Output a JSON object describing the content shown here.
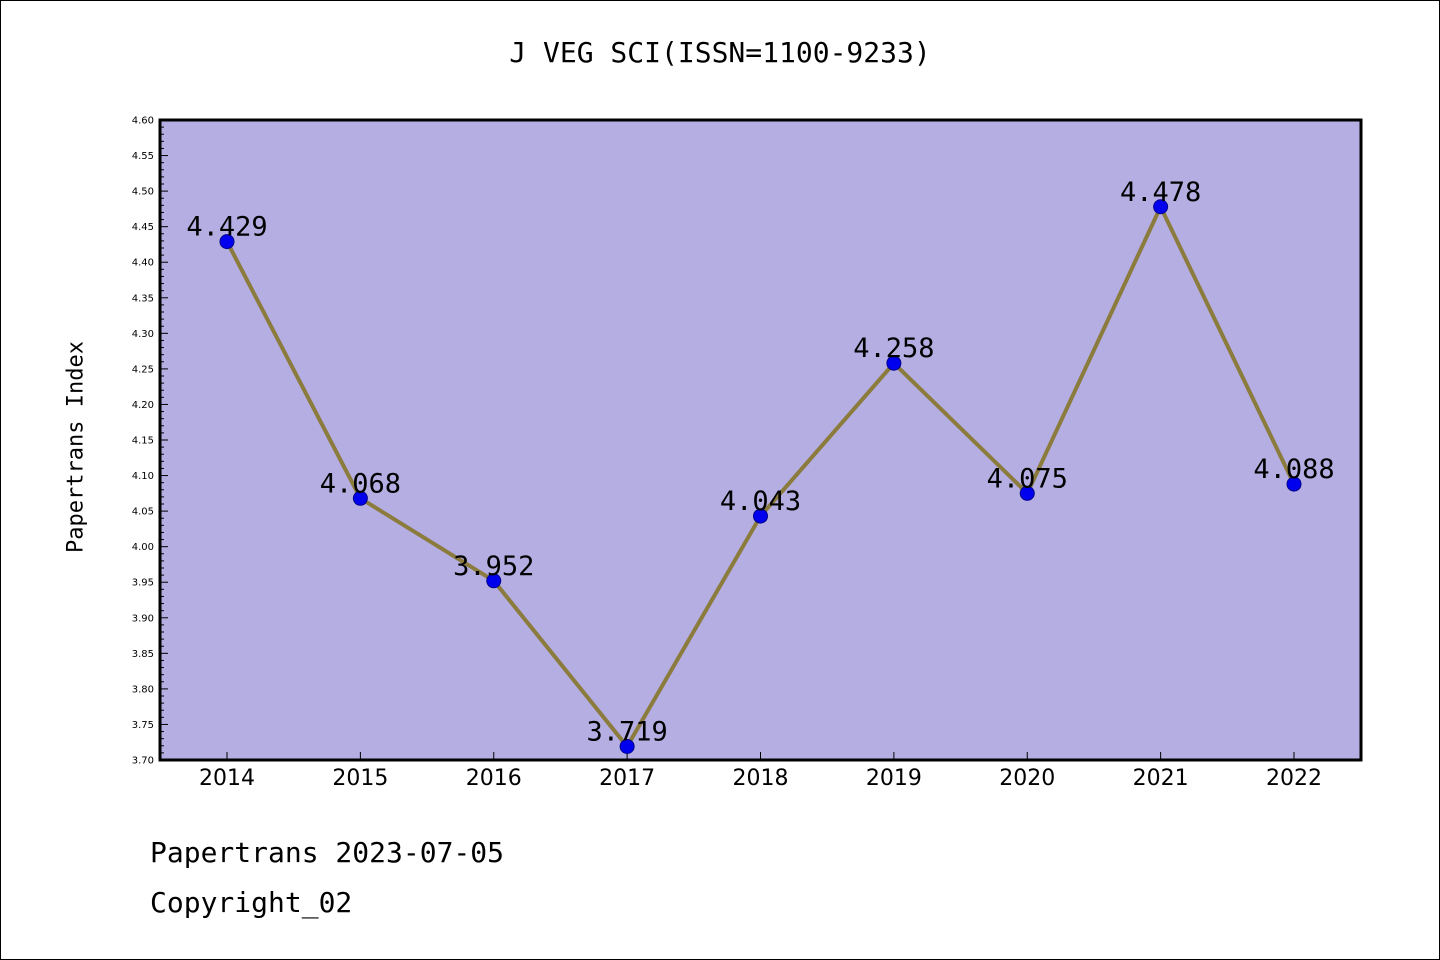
{
  "chart_data": {
    "type": "line",
    "title": "J VEG SCI(ISSN=1100-9233)",
    "xlabel": "",
    "ylabel": "Papertrans Index",
    "categories": [
      "2014",
      "2015",
      "2016",
      "2017",
      "2018",
      "2019",
      "2020",
      "2021",
      "2022"
    ],
    "values": [
      4.429,
      4.068,
      3.952,
      3.719,
      4.043,
      4.258,
      4.075,
      4.478,
      4.088
    ],
    "data_labels": [
      "4.429",
      "4.068",
      "3.952",
      "3.719",
      "4.043",
      "4.258",
      "4.075",
      "4.478",
      "4.088"
    ],
    "ylim": [
      3.7,
      4.6
    ],
    "yticks": [
      "3.70",
      "3.75",
      "3.80",
      "3.85",
      "3.90",
      "3.95",
      "4.00",
      "4.05",
      "4.10",
      "4.15",
      "4.20",
      "4.25",
      "4.30",
      "4.35",
      "4.40",
      "4.45",
      "4.50",
      "4.55",
      "4.60"
    ],
    "grid": false,
    "legend": "none",
    "colors": {
      "plot_background": "#b4aee2",
      "line": "#8b7b3c",
      "marker": "#0000ee",
      "marker_edge": "#00008b"
    }
  },
  "footer": {
    "line1": "Papertrans 2023-07-05",
    "line2": "Copyright_02"
  }
}
